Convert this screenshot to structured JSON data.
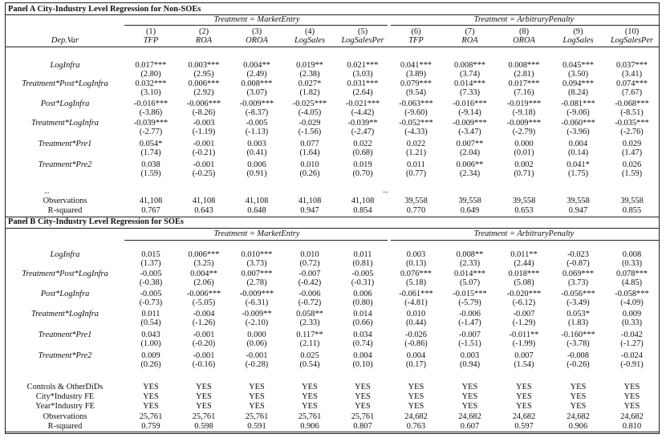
{
  "panel_a": {
    "title": "Panel A City-Industry Level Regression for Non-SOEs",
    "treatment_left": "Treatment = MarketEntry",
    "treatment_right": "Treatment = ArbitraryPenalty",
    "dep_var_label": "Dep.Var",
    "col_numbers": [
      "(1)",
      "(2)",
      "(3)",
      "(4)",
      "(5)",
      "(6)",
      "(7)",
      "(8)",
      "(9)",
      "(10)"
    ],
    "col_names": [
      "TFP",
      "ROA",
      "OROA",
      "LogSales",
      "LogSalesPer",
      "TFP",
      "ROA",
      "OROA",
      "LogSales",
      "LogSalesPer"
    ],
    "rows": [
      {
        "label": "LogInfra",
        "coef": [
          "0.017***",
          "0.003***",
          "0.004**",
          "0.019**",
          "0.021***",
          "0.041***",
          "0.008***",
          "0.008***",
          "0.045***",
          "0.037***"
        ],
        "t": [
          "(2.80)",
          "(2.95)",
          "(2.49)",
          "(2.38)",
          "(3.03)",
          "(3.89)",
          "(3.74)",
          "(2.81)",
          "(3.50)",
          "(3.41)"
        ]
      },
      {
        "label": "Treatment*Post*LogInfra",
        "coef": [
          "0.032***",
          "0.006***",
          "0.008***",
          "0.027*",
          "0.031***",
          "0.079***",
          "0.014***",
          "0.017***",
          "0.094***",
          "0.074***"
        ],
        "t": [
          "(3.10)",
          "(2.92)",
          "(3.07)",
          "(1.82)",
          "(2.64)",
          "(9.54)",
          "(7.33)",
          "(7.16)",
          "(8.24)",
          "(7.67)"
        ]
      },
      {
        "label": "Post*LogInfra",
        "coef": [
          "-0.016***",
          "-0.006***",
          "-0.009***",
          "-0.025***",
          "-0.021***",
          "-0.063***",
          "-0.016***",
          "-0.019***",
          "-0.081***",
          "-0.068***"
        ],
        "t": [
          "(-3.86)",
          "(-8.26)",
          "(-8.37)",
          "(-4.05)",
          "(-4.42)",
          "(-9.60)",
          "(-9.14)",
          "(-9.18)",
          "(-9.06)",
          "(-8.51)"
        ]
      },
      {
        "label": "Treatment*LogInfra",
        "coef": [
          "-0.039***",
          "-0.003",
          "-0.005",
          "-0.029",
          "-0.039**",
          "-0.052***",
          "-0.009***",
          "-0.009***",
          "-0.060***",
          "-0.035***"
        ],
        "t": [
          "(-2.77)",
          "(-1.19)",
          "(-1.13)",
          "(-1.56)",
          "(-2.47)",
          "(-4.33)",
          "(-3.47)",
          "(-2.79)",
          "(-3.96)",
          "(-2.76)"
        ]
      },
      {
        "label": "Treatment*Pre1",
        "coef": [
          "0.054*",
          "-0.001",
          "0.003",
          "0.077",
          "0.022",
          "0.022",
          "0.007**",
          "0.000",
          "0.004",
          "0.029"
        ],
        "t": [
          "(1.74)",
          "(-0.21)",
          "(0.41)",
          "(1.64)",
          "(0.68)",
          "(1.21)",
          "(2.04)",
          "(0.01)",
          "(0.14)",
          "(1.47)"
        ]
      },
      {
        "label": "Treatment*Pre2",
        "coef": [
          "0.038",
          "-0.001",
          "0.006",
          "0.010",
          "0.019",
          "0.011",
          "0.006**",
          "0.002",
          "0.041*",
          "0.026"
        ],
        "t": [
          "(1.59)",
          "(-0.25)",
          "(0.91)",
          "(0.26)",
          "(0.70)",
          "(0.77)",
          "(2.34)",
          "(0.71)",
          "(1.75)",
          "(1.59)"
        ]
      }
    ],
    "ellipsis": "...",
    "observations_label": "Observations",
    "observations": [
      "41,108",
      "41,108",
      "41,108",
      "41,108",
      "41,108",
      "39,558",
      "39,558",
      "39,558",
      "39,558",
      "39,558"
    ],
    "rsquared_label": "R-squared",
    "rsquared": [
      "0.767",
      "0.643",
      "0.648",
      "0.947",
      "0.854",
      "0.770",
      "0.649",
      "0.653",
      "0.947",
      "0.855"
    ]
  },
  "panel_b": {
    "title": "Panel B City-Industry Level Regression for SOEs",
    "treatment_left": "Treatment = MarketEntry",
    "treatment_right": "Treatment = ArbitraryPenalty",
    "rows": [
      {
        "label": "LogInfra",
        "coef": [
          "0.015",
          "0.006***",
          "0.010***",
          "0.010",
          "0.011",
          "0.003",
          "0.008**",
          "0.011**",
          "-0.023",
          "0.008"
        ],
        "t": [
          "(1.37)",
          "(3.25)",
          "(3.73)",
          "(0.72)",
          "(0.81)",
          "(0.13)",
          "(2.33)",
          "(2.44)",
          "(-0.87)",
          "(0.33)"
        ]
      },
      {
        "label": "Treatment*Post*LogInfra",
        "coef": [
          "-0.005",
          "0.004**",
          "0.007***",
          "-0.007",
          "-0.005",
          "0.076***",
          "0.014***",
          "0.018***",
          "0.069***",
          "0.078***"
        ],
        "t": [
          "(-0.38)",
          "(2.06)",
          "(2.78)",
          "(-0.42)",
          "(-0.31)",
          "(5.18)",
          "(5.07)",
          "(5.08)",
          "(3.73)",
          "(4.85)"
        ]
      },
      {
        "label": "Post*LogInfra",
        "coef": [
          "-0.005",
          "-0.006***",
          "-0.009***",
          "-0.006",
          "0.006",
          "-0.061***",
          "-0.015***",
          "-0.020***",
          "-0.056***",
          "-0.058***"
        ],
        "t": [
          "(-0.73)",
          "(-5.05)",
          "(-6.31)",
          "(-0.72)",
          "(0.80)",
          "(-4.81)",
          "(-5.79)",
          "(-6.12)",
          "(-3.49)",
          "(-4.09)"
        ]
      },
      {
        "label": "Treatment*LogInfra",
        "coef": [
          "0.011",
          "-0.004",
          "-0.009**",
          "0.058**",
          "0.014",
          "0.010",
          "-0.006",
          "-0.007",
          "0.053*",
          "0.009"
        ],
        "t": [
          "(0.54)",
          "(-1.26)",
          "(-2.10)",
          "(2.33)",
          "(0.66)",
          "(0.44)",
          "(-1.47)",
          "(-1.29)",
          "(1.83)",
          "(0.33)"
        ]
      },
      {
        "label": "Treatment*Pre1",
        "coef": [
          "0.043",
          "-0.001",
          "0.000",
          "0.117**",
          "0.034",
          "-0.026",
          "-0.007",
          "-0.011**",
          "-0.160***",
          "-0.042"
        ],
        "t": [
          "(1.00)",
          "(-0.20)",
          "(0.06)",
          "(2.11)",
          "(0.74)",
          "(-0.86)",
          "(-1.51)",
          "(-1.99)",
          "(-3.78)",
          "(-1.27)"
        ]
      },
      {
        "label": "Treatment*Pre2",
        "coef": [
          "0.009",
          "-0.001",
          "-0.001",
          "0.025",
          "0.004",
          "0.004",
          "0.003",
          "0.007",
          "-0.008",
          "-0.024"
        ],
        "t": [
          "(0.26)",
          "(-0.16)",
          "(-0.28)",
          "(0.54)",
          "(0.10)",
          "(0.17)",
          "(0.94)",
          "(1.54)",
          "(-0.26)",
          "(-0.91)"
        ]
      }
    ],
    "fe_rows": [
      {
        "label": "Controls & OtherDiDs",
        "values": [
          "YES",
          "YES",
          "YES",
          "YES",
          "YES",
          "YES",
          "YES",
          "YES",
          "YES",
          "YES"
        ]
      },
      {
        "label": "City*Industry FE",
        "values": [
          "YES",
          "YES",
          "YES",
          "YES",
          "YES",
          "YES",
          "YES",
          "YES",
          "YES",
          "YES"
        ]
      },
      {
        "label": "Year*Industry FE",
        "values": [
          "YES",
          "YES",
          "YES",
          "YES",
          "YES",
          "YES",
          "YES",
          "YES",
          "YES",
          "YES"
        ]
      }
    ],
    "observations_label": "Observations",
    "observations": [
      "25,761",
      "25,761",
      "25,761",
      "25,761",
      "25,761",
      "24,682",
      "24,682",
      "24,682",
      "24,682",
      "24,682"
    ],
    "rsquared_label": "R-squared",
    "rsquared": [
      "0.759",
      "0.598",
      "0.591",
      "0.906",
      "0.807",
      "0.763",
      "0.607",
      "0.597",
      "0.906",
      "0.810"
    ]
  }
}
